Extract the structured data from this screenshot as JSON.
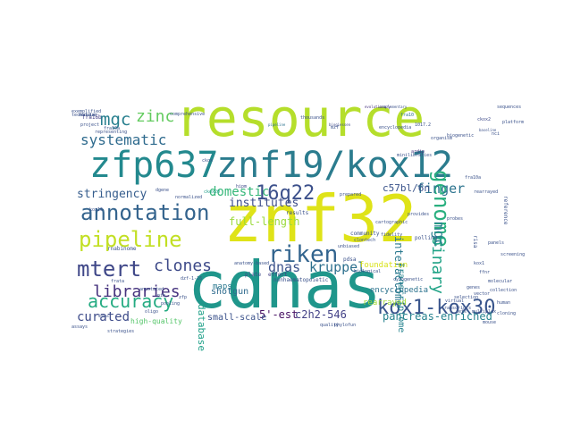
{
  "words": [
    {
      "text": "zfp637",
      "color": "#23898e"
    },
    {
      "text": "znf19/kox12",
      "color": "#2b7c8e"
    },
    {
      "text": "resource",
      "color": "#b5de2b"
    },
    {
      "text": "znf32",
      "color": "#dfe318"
    },
    {
      "text": "cdnas",
      "color": "#1f968b"
    },
    {
      "text": "pipeline",
      "color": "#c2df23"
    },
    {
      "text": "annotation",
      "color": "#33638d"
    },
    {
      "text": "riken",
      "color": "#32648e"
    },
    {
      "text": "genome",
      "color": "#29af7f"
    },
    {
      "text": "kox1-kox30",
      "color": "#39558c"
    },
    {
      "text": "mtert",
      "color": "#3f4788"
    },
    {
      "text": "clones",
      "color": "#3e4a89"
    },
    {
      "text": "accuracy",
      "color": "#25ab82"
    },
    {
      "text": "16q22",
      "color": "#3c508b"
    },
    {
      "text": "mgc",
      "color": "#277f8e"
    },
    {
      "text": "zinc",
      "color": "#63cb5f"
    },
    {
      "text": "systematic",
      "color": "#2f6b8e"
    },
    {
      "text": "libraries",
      "color": "#46337e"
    },
    {
      "text": "curated",
      "color": "#3e4c8a"
    },
    {
      "text": "binary",
      "color": "#20a386"
    },
    {
      "text": "finger",
      "color": "#2c738e"
    },
    {
      "text": "stringency",
      "color": "#365d8d"
    },
    {
      "text": "kruppel",
      "color": "#2d708e"
    },
    {
      "text": "dnas",
      "color": "#3b528b"
    },
    {
      "text": "institutes",
      "color": "#3d4d8a"
    },
    {
      "text": "domestic",
      "color": "#35b779"
    },
    {
      "text": "c57bl/6n",
      "color": "#3a538b"
    },
    {
      "text": "interactome",
      "color": "#2a788e"
    },
    {
      "text": "transcriptome",
      "color": "#25838e"
    },
    {
      "text": "full-length",
      "color": "#9bd93c"
    },
    {
      "text": "shotgun",
      "color": "#2f6b8e"
    },
    {
      "text": "database",
      "color": "#1fa088"
    },
    {
      "text": "5'-est",
      "color": "#471063"
    },
    {
      "text": "c2h2-546",
      "color": "#424186"
    },
    {
      "text": "small-scale",
      "color": "#3b528b"
    },
    {
      "text": "pancreas-enriched",
      "color": "#26828e"
    },
    {
      "text": "encyclopedia",
      "color": "#2c738e"
    },
    {
      "text": "rearrayed",
      "color": "#a2da37"
    },
    {
      "text": "maps",
      "color": "#2a788e"
    },
    {
      "text": "foundation",
      "color": "#d8e219"
    },
    {
      "text": "high-quality",
      "color": "#54c568"
    },
    {
      "text": "mgc",
      "color": "#277f8e"
    },
    {
      "text": "1017.2",
      "color": "#3b528b"
    },
    {
      "text": "complementary",
      "color": "#3b528b"
    },
    {
      "text": "evolutionary",
      "color": "#46337e"
    },
    {
      "text": "biogiessen",
      "color": "#3e4a89"
    },
    {
      "text": "pipeline",
      "color": "#2c728e"
    },
    {
      "text": "fra10",
      "color": "#2c728e"
    },
    {
      "text": "fra16b",
      "color": "#433e85"
    },
    {
      "text": "fra10a",
      "color": "#3b528b"
    },
    {
      "text": "ckox2",
      "color": "#3e4a89"
    },
    {
      "text": "ckox20",
      "color": "#1f9e89"
    },
    {
      "text": "ckox",
      "color": "#3b528b"
    },
    {
      "text": "hipm",
      "color": "#3e4a89"
    },
    {
      "text": "risa",
      "color": "#3b528b"
    },
    {
      "text": "nonhaematopoietic",
      "color": "#3b528b"
    },
    {
      "text": "minilibraries",
      "color": "#3b528b"
    },
    {
      "text": "ardip",
      "color": "#46337e"
    },
    {
      "text": "clontech",
      "color": "#3b528b"
    },
    {
      "text": "plate",
      "color": "#3e4a89"
    },
    {
      "text": "community",
      "color": "#3b528b"
    },
    {
      "text": "effort",
      "color": "#433e85"
    },
    {
      "text": "pdsa",
      "color": "#3b528b"
    },
    {
      "text": "rnabinome",
      "color": "#3b528b"
    },
    {
      "text": "polling",
      "color": "#3b528b"
    },
    {
      "text": "provides",
      "color": "#3b528b"
    },
    {
      "text": "cartographic",
      "color": "#3b528b"
    },
    {
      "text": "dzf-1-16",
      "color": "#3b528b"
    },
    {
      "text": "frata",
      "color": "#3b528b"
    },
    {
      "text": "anatomy-based",
      "color": "#3b528b"
    },
    {
      "text": "reference",
      "color": "#3b528b"
    },
    {
      "text": "phylofun",
      "color": "#3b528b"
    },
    {
      "text": "kox16",
      "color": "#3b528b"
    },
    {
      "text": "ddnas",
      "color": "#3b528b"
    },
    {
      "text": "exemplified",
      "color": "#3b528b"
    },
    {
      "text": "technique",
      "color": "#3b528b"
    },
    {
      "text": "modular",
      "color": "#3b528b"
    },
    {
      "text": "project",
      "color": "#3b528b"
    },
    {
      "text": "representing",
      "color": "#3b528b"
    },
    {
      "text": "comprehensive",
      "color": "#3b528b"
    },
    {
      "text": "encyclopedia",
      "color": "#3b528b"
    },
    {
      "text": "organism",
      "color": "#3b528b"
    },
    {
      "text": "thousands",
      "color": "#3b528b"
    },
    {
      "text": "biogenetic",
      "color": "#3b528b"
    },
    {
      "text": "baseline",
      "color": "#3b528b"
    },
    {
      "text": "sequences",
      "color": "#3b528b"
    },
    {
      "text": "nci",
      "color": "#3b528b"
    },
    {
      "text": "ffnr",
      "color": "#3b528b"
    },
    {
      "text": "fra10a",
      "color": "#3b528b"
    },
    {
      "text": "probes",
      "color": "#3b528b"
    },
    {
      "text": "kox1",
      "color": "#3b528b"
    },
    {
      "text": "rearrayed",
      "color": "#3b528b"
    },
    {
      "text": "quality",
      "color": "#3b528b"
    },
    {
      "text": "screening",
      "color": "#3b528b"
    },
    {
      "text": "platform",
      "color": "#3b528b"
    },
    {
      "text": "mzf",
      "color": "#3b528b"
    },
    {
      "text": "dgene",
      "color": "#3b528b"
    },
    {
      "text": "prepared",
      "color": "#3b528b"
    },
    {
      "text": "unbiased",
      "color": "#3b528b"
    },
    {
      "text": "biological",
      "color": "#3b528b"
    },
    {
      "text": "fidelity",
      "color": "#3b528b"
    },
    {
      "text": "normalized",
      "color": "#3b528b"
    },
    {
      "text": "cytogenetic",
      "color": "#3b528b"
    },
    {
      "text": "annotated",
      "color": "#3b528b"
    },
    {
      "text": "oligo",
      "color": "#3b528b"
    },
    {
      "text": "nih",
      "color": "#3b528b"
    },
    {
      "text": "pooling",
      "color": "#3b528b"
    },
    {
      "text": "zfp",
      "color": "#3b528b"
    },
    {
      "text": "vector",
      "color": "#3b528b"
    },
    {
      "text": "collection",
      "color": "#3b528b"
    },
    {
      "text": "genes",
      "color": "#3b528b"
    },
    {
      "text": "mouse",
      "color": "#3b528b"
    },
    {
      "text": "human",
      "color": "#3b528b"
    },
    {
      "text": "selection",
      "color": "#3b528b"
    },
    {
      "text": "multiplex",
      "color": "#3b528b"
    },
    {
      "text": "molecular",
      "color": "#3b528b"
    },
    {
      "text": "cloning",
      "color": "#3b528b"
    },
    {
      "text": "transcripts",
      "color": "#3b528b"
    },
    {
      "text": "virtual",
      "color": "#3b528b"
    },
    {
      "text": "sets",
      "color": "#3b528b"
    },
    {
      "text": "panels",
      "color": "#3b528b"
    },
    {
      "text": "assays",
      "color": "#3b528b"
    },
    {
      "text": "strategies",
      "color": "#3b528b"
    },
    {
      "text": "results",
      "color": "#3b528b"
    }
  ]
}
